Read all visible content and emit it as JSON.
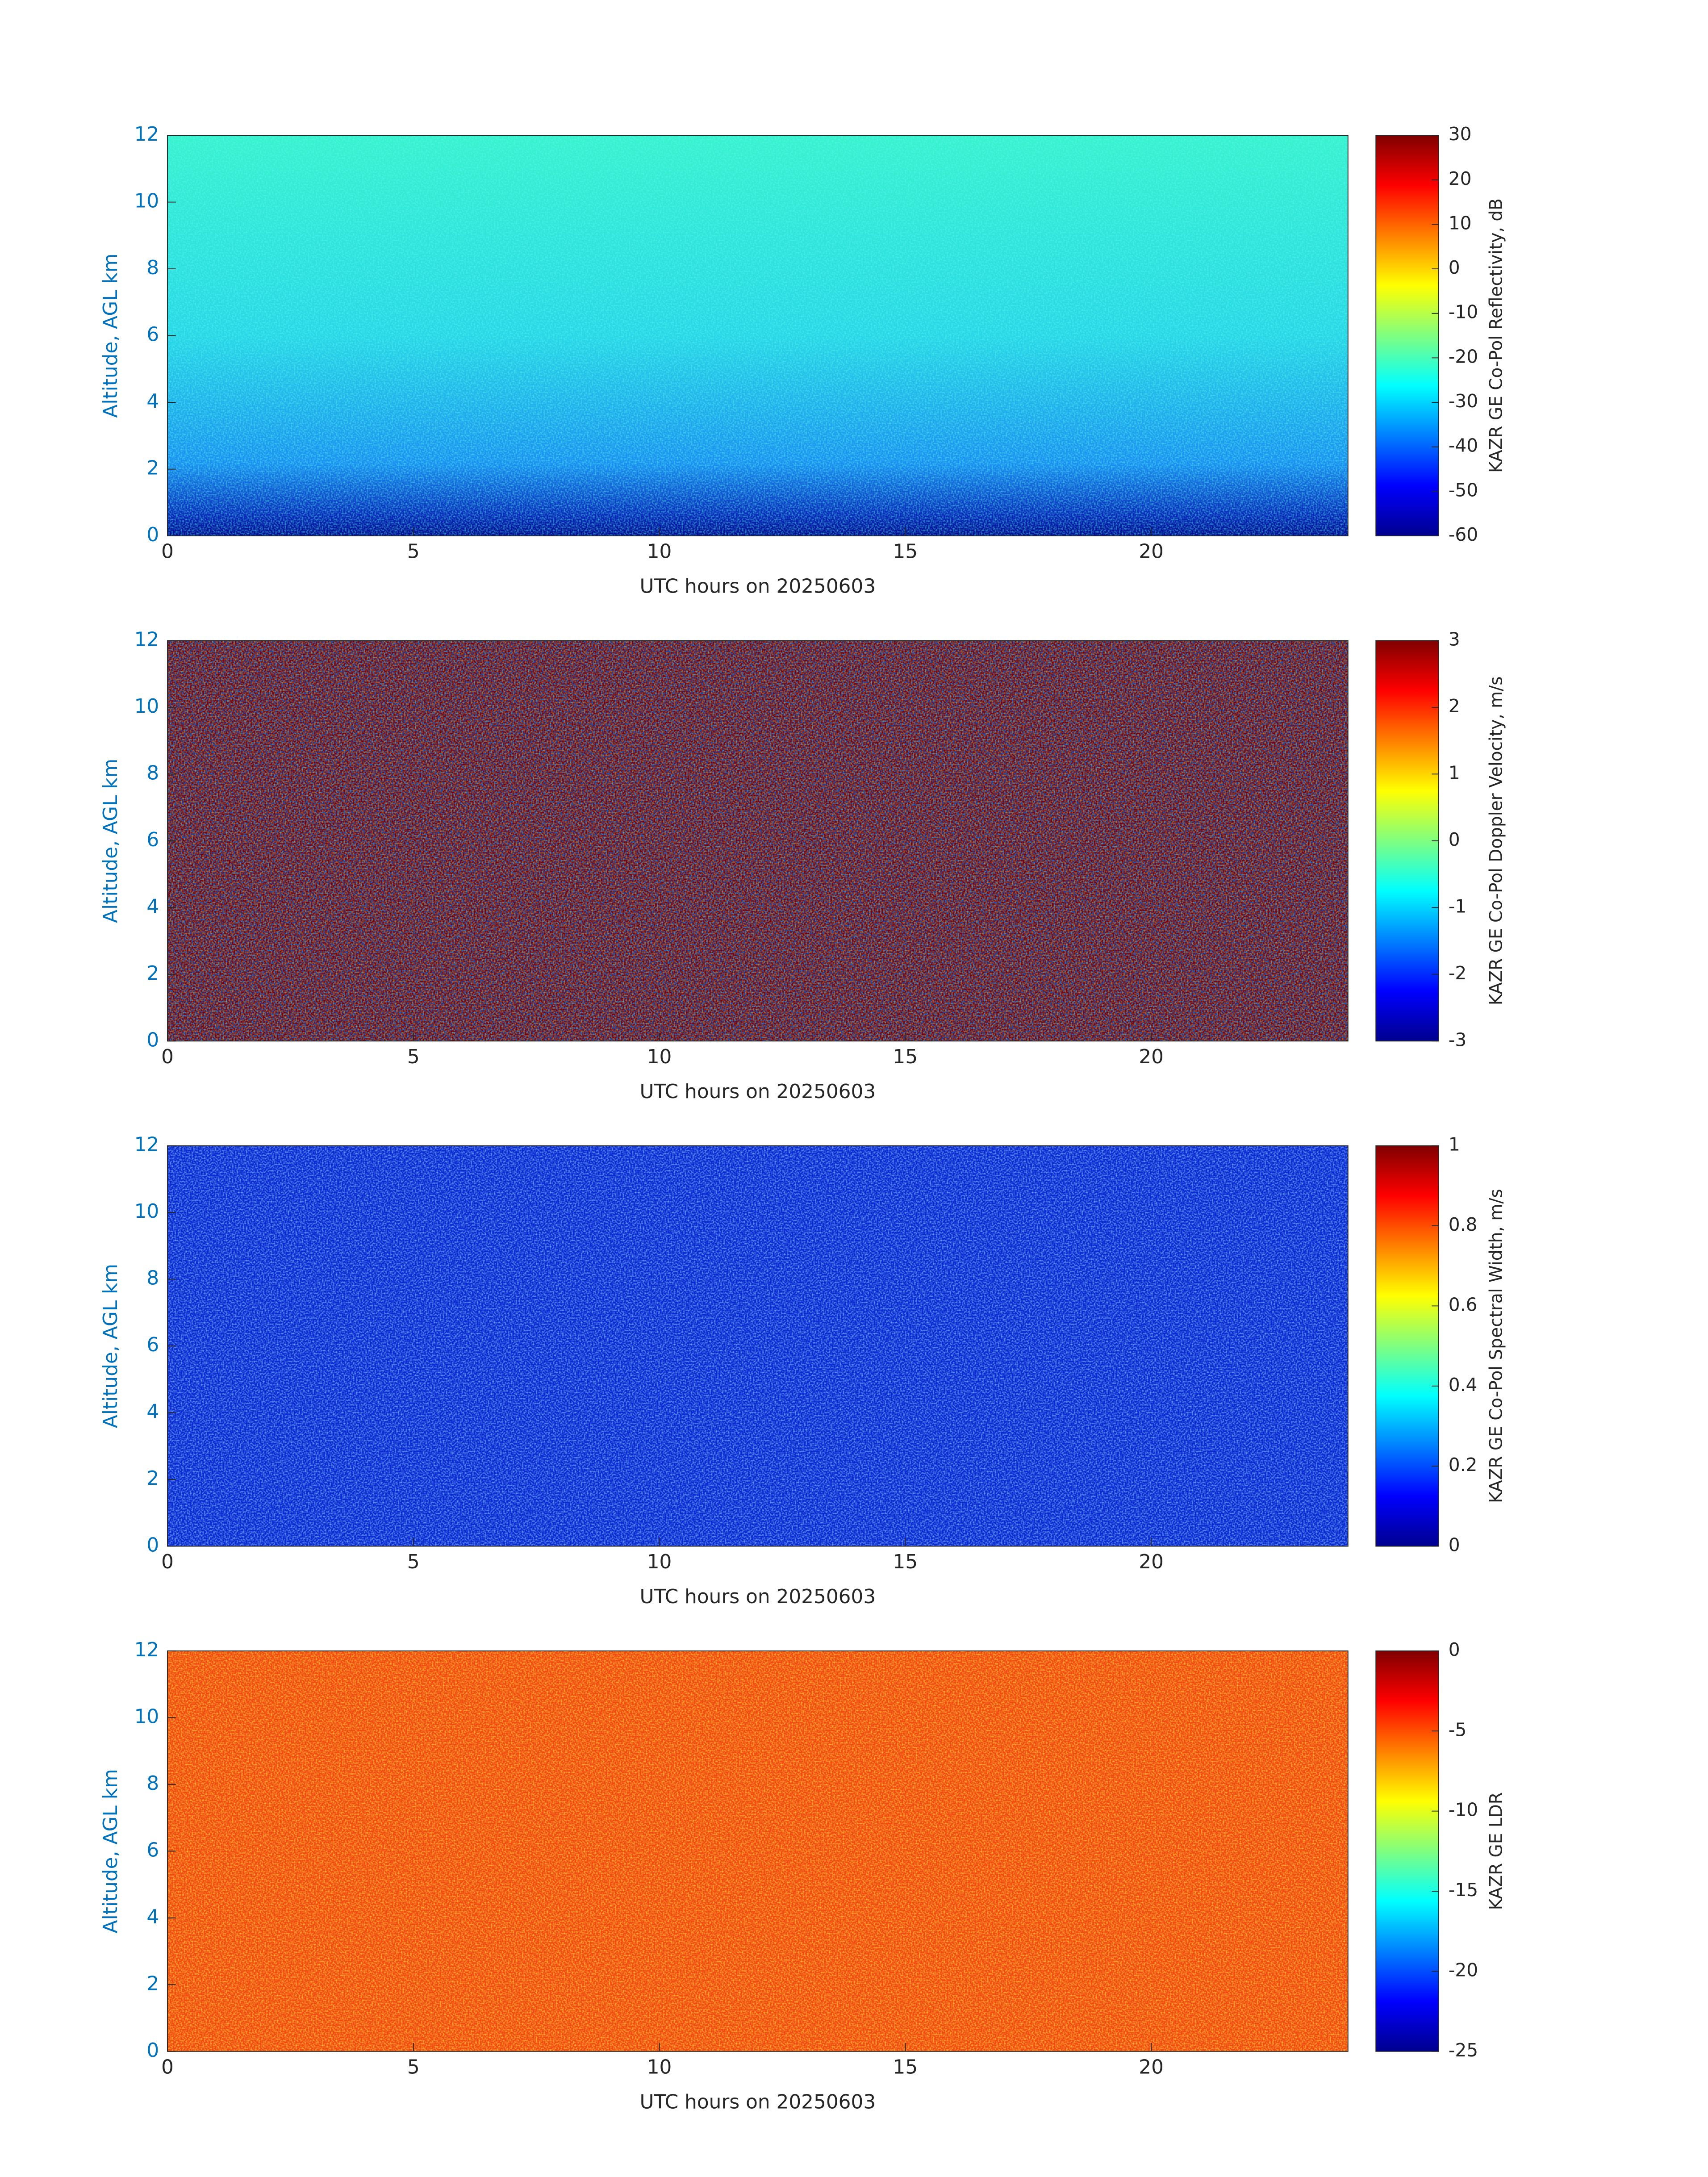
{
  "chart_data": [
    {
      "type": "heatmap",
      "colormap": "jet",
      "xlabel": "UTC hours on 20250603",
      "ylabel": "Altitude, AGL km",
      "xlim": [
        0,
        24
      ],
      "xticks": [
        0,
        5,
        10,
        15,
        20
      ],
      "ylim": [
        0,
        12
      ],
      "yticks": [
        0,
        2,
        4,
        6,
        8,
        10,
        12
      ],
      "colorbar": {
        "label": "KAZR GE Co-Pol Reflectivity, dB",
        "clim": [
          -60,
          30
        ],
        "ticks": [
          -60,
          -50,
          -40,
          -30,
          -20,
          -10,
          0,
          10,
          20,
          30
        ]
      }
    },
    {
      "type": "heatmap",
      "colormap": "jet",
      "xlabel": "UTC hours on 20250603",
      "ylabel": "Altitude, AGL km",
      "xlim": [
        0,
        24
      ],
      "xticks": [
        0,
        5,
        10,
        15,
        20
      ],
      "ylim": [
        0,
        12
      ],
      "yticks": [
        0,
        2,
        4,
        6,
        8,
        10,
        12
      ],
      "colorbar": {
        "label": "KAZR GE Co-Pol Doppler Velocity, m/s",
        "clim": [
          -3,
          3
        ],
        "ticks": [
          -3,
          -2,
          -1,
          0,
          1,
          2,
          3
        ]
      }
    },
    {
      "type": "heatmap",
      "colormap": "jet",
      "xlabel": "UTC hours on 20250603",
      "ylabel": "Altitude, AGL km",
      "xlim": [
        0,
        24
      ],
      "xticks": [
        0,
        5,
        10,
        15,
        20
      ],
      "ylim": [
        0,
        12
      ],
      "yticks": [
        0,
        2,
        4,
        6,
        8,
        10,
        12
      ],
      "colorbar": {
        "label": "KAZR GE Co-Pol Spectral Width, m/s",
        "clim": [
          0,
          1
        ],
        "ticks": [
          0,
          0.2,
          0.4,
          0.6,
          0.8,
          1
        ]
      }
    },
    {
      "type": "heatmap",
      "colormap": "jet",
      "xlabel": "UTC hours on 20250603",
      "ylabel": "Altitude, AGL km",
      "xlim": [
        0,
        24
      ],
      "xticks": [
        0,
        5,
        10,
        15,
        20
      ],
      "ylim": [
        0,
        12
      ],
      "yticks": [
        0,
        2,
        4,
        6,
        8,
        10,
        12
      ],
      "colorbar": {
        "label": "KAZR GE LDR",
        "clim": [
          -25,
          0
        ],
        "ticks": [
          -25,
          -20,
          -15,
          -10,
          -5,
          0
        ]
      }
    }
  ]
}
